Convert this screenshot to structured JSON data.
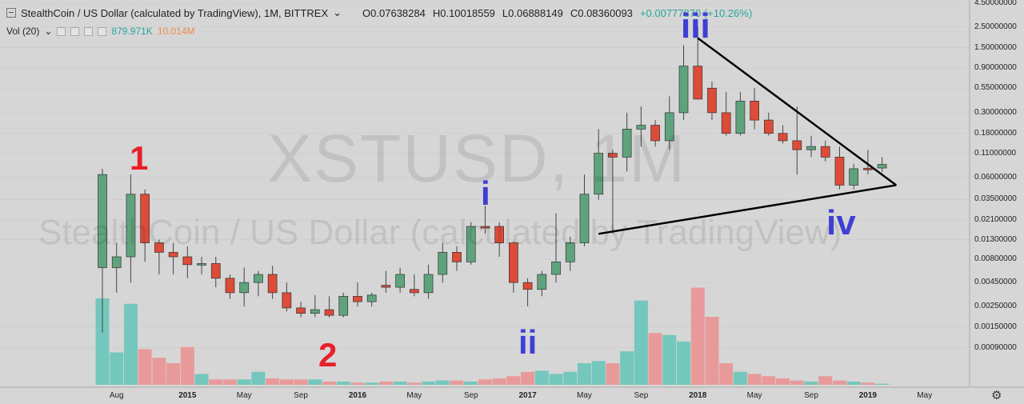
{
  "header": {
    "title": "StealthCoin / US Dollar (calculated by TradingView), 1M, BITTREX",
    "chevron": "⌄",
    "open": "O0.07638284",
    "high": "H0.10018559",
    "low": "L0.06888149",
    "close": "C0.08360093",
    "change": "+0.00777870 (+10.26%)"
  },
  "volume_indicator": {
    "label": "Vol (20)",
    "chevron": "⌄",
    "value_green": "879.971K",
    "value_orange": "10.014M"
  },
  "watermark": {
    "symbol": "XSTUSD, 1M",
    "description": "StealthCoin / US Dollar (calculated by TradingView)"
  },
  "annotations": [
    {
      "text": "1",
      "color": "#e8202a"
    },
    {
      "text": "2",
      "color": "#e8202a"
    },
    {
      "text": "i",
      "color": "#3f3fd4"
    },
    {
      "text": "ii",
      "color": "#3f3fd4"
    },
    {
      "text": "iii",
      "color": "#3f3fd4"
    },
    {
      "text": "iv",
      "color": "#3f3fd4"
    }
  ],
  "colors": {
    "up": "#5fa37d",
    "down": "#dd4b39",
    "vol_up": "#74c7bd",
    "vol_down": "#e89a9a",
    "trendline": "#000000"
  },
  "icons": {
    "settings": "gear-icon"
  },
  "chart_data": {
    "type": "candlestick",
    "scale": "log",
    "timeframe": "1M",
    "ylim": [
      0.0006,
      4.5
    ],
    "y_tick_labels": [
      "4.50000000",
      "2.50000000",
      "1.50000000",
      "0.90000000",
      "0.55000000",
      "0.30000000",
      "0.18000000",
      "0.11000000",
      "0.06000000",
      "0.03500000",
      "0.02100000",
      "0.01300000",
      "0.00800000",
      "0.00450000",
      "0.00250000",
      "0.00150000",
      "0.00090000"
    ],
    "x_tick_labels": [
      "Aug",
      "2015",
      "May",
      "Sep",
      "2016",
      "May",
      "Sep",
      "2017",
      "May",
      "Sep",
      "2018",
      "May",
      "Sep",
      "2019",
      "May"
    ],
    "series": [
      {
        "t": "2014-07",
        "o": 0.0065,
        "h": 0.075,
        "l": 0.0013,
        "c": 0.065
      },
      {
        "t": "2014-08",
        "o": 0.0065,
        "h": 0.012,
        "l": 0.0035,
        "c": 0.0085
      },
      {
        "t": "2014-09",
        "o": 0.0085,
        "h": 0.065,
        "l": 0.0045,
        "c": 0.04
      },
      {
        "t": "2014-10",
        "o": 0.04,
        "h": 0.045,
        "l": 0.0075,
        "c": 0.012
      },
      {
        "t": "2014-11",
        "o": 0.012,
        "h": 0.013,
        "l": 0.0055,
        "c": 0.0095
      },
      {
        "t": "2014-12",
        "o": 0.0095,
        "h": 0.012,
        "l": 0.0055,
        "c": 0.0085
      },
      {
        "t": "2015-01",
        "o": 0.0085,
        "h": 0.011,
        "l": 0.005,
        "c": 0.007
      },
      {
        "t": "2015-02",
        "o": 0.007,
        "h": 0.0085,
        "l": 0.0055,
        "c": 0.0072
      },
      {
        "t": "2015-03",
        "o": 0.0072,
        "h": 0.0085,
        "l": 0.004,
        "c": 0.005
      },
      {
        "t": "2015-04",
        "o": 0.005,
        "h": 0.0055,
        "l": 0.003,
        "c": 0.0035
      },
      {
        "t": "2015-05",
        "o": 0.0035,
        "h": 0.0065,
        "l": 0.0025,
        "c": 0.0045
      },
      {
        "t": "2015-06",
        "o": 0.0045,
        "h": 0.006,
        "l": 0.0032,
        "c": 0.0055
      },
      {
        "t": "2015-07",
        "o": 0.0055,
        "h": 0.0068,
        "l": 0.003,
        "c": 0.0035
      },
      {
        "t": "2015-08",
        "o": 0.0035,
        "h": 0.0045,
        "l": 0.0022,
        "c": 0.0024
      },
      {
        "t": "2015-09",
        "o": 0.0024,
        "h": 0.0028,
        "l": 0.0019,
        "c": 0.0021
      },
      {
        "t": "2015-10",
        "o": 0.0021,
        "h": 0.0033,
        "l": 0.0019,
        "c": 0.0023
      },
      {
        "t": "2015-11",
        "o": 0.0023,
        "h": 0.0032,
        "l": 0.0019,
        "c": 0.002
      },
      {
        "t": "2015-12",
        "o": 0.002,
        "h": 0.0035,
        "l": 0.0019,
        "c": 0.0032
      },
      {
        "t": "2016-01",
        "o": 0.0032,
        "h": 0.0045,
        "l": 0.0025,
        "c": 0.0028
      },
      {
        "t": "2016-02",
        "o": 0.0028,
        "h": 0.0035,
        "l": 0.0025,
        "c": 0.0033
      },
      {
        "t": "2016-03",
        "o": 0.0042,
        "h": 0.006,
        "l": 0.0035,
        "c": 0.004
      },
      {
        "t": "2016-04",
        "o": 0.004,
        "h": 0.0065,
        "l": 0.0035,
        "c": 0.0055
      },
      {
        "t": "2016-05",
        "o": 0.0038,
        "h": 0.0055,
        "l": 0.0032,
        "c": 0.0035
      },
      {
        "t": "2016-06",
        "o": 0.0035,
        "h": 0.007,
        "l": 0.003,
        "c": 0.0055
      },
      {
        "t": "2016-07",
        "o": 0.0055,
        "h": 0.012,
        "l": 0.0045,
        "c": 0.0095
      },
      {
        "t": "2016-08",
        "o": 0.0095,
        "h": 0.011,
        "l": 0.006,
        "c": 0.0075
      },
      {
        "t": "2016-09",
        "o": 0.0075,
        "h": 0.02,
        "l": 0.007,
        "c": 0.018
      },
      {
        "t": "2016-10",
        "o": 0.018,
        "h": 0.03,
        "l": 0.015,
        "c": 0.0175
      },
      {
        "t": "2016-11",
        "o": 0.018,
        "h": 0.02,
        "l": 0.0085,
        "c": 0.012
      },
      {
        "t": "2016-12",
        "o": 0.012,
        "h": 0.0125,
        "l": 0.0035,
        "c": 0.0045
      },
      {
        "t": "2017-01",
        "o": 0.0045,
        "h": 0.005,
        "l": 0.0025,
        "c": 0.0038
      },
      {
        "t": "2017-02",
        "o": 0.0038,
        "h": 0.006,
        "l": 0.0032,
        "c": 0.0055
      },
      {
        "t": "2017-03",
        "o": 0.0055,
        "h": 0.025,
        "l": 0.0045,
        "c": 0.0075
      },
      {
        "t": "2017-04",
        "o": 0.0075,
        "h": 0.014,
        "l": 0.006,
        "c": 0.012
      },
      {
        "t": "2017-05",
        "o": 0.012,
        "h": 0.065,
        "l": 0.011,
        "c": 0.04
      },
      {
        "t": "2017-06",
        "o": 0.04,
        "h": 0.2,
        "l": 0.035,
        "c": 0.11
      },
      {
        "t": "2017-07",
        "o": 0.11,
        "h": 0.12,
        "l": 0.015,
        "c": 0.1
      },
      {
        "t": "2017-08",
        "o": 0.1,
        "h": 0.3,
        "l": 0.07,
        "c": 0.2
      },
      {
        "t": "2017-09",
        "o": 0.2,
        "h": 0.35,
        "l": 0.13,
        "c": 0.22
      },
      {
        "t": "2017-10",
        "o": 0.22,
        "h": 0.25,
        "l": 0.13,
        "c": 0.15
      },
      {
        "t": "2017-11",
        "o": 0.15,
        "h": 0.45,
        "l": 0.12,
        "c": 0.3
      },
      {
        "t": "2017-12",
        "o": 0.3,
        "h": 1.6,
        "l": 0.25,
        "c": 0.95
      },
      {
        "t": "2018-01",
        "o": 0.95,
        "h": 2.5,
        "l": 0.5,
        "c": 0.42
      },
      {
        "t": "2018-02",
        "o": 0.55,
        "h": 0.65,
        "l": 0.25,
        "c": 0.3
      },
      {
        "t": "2018-03",
        "o": 0.3,
        "h": 0.5,
        "l": 0.17,
        "c": 0.18
      },
      {
        "t": "2018-04",
        "o": 0.18,
        "h": 0.5,
        "l": 0.17,
        "c": 0.4
      },
      {
        "t": "2018-05",
        "o": 0.4,
        "h": 0.55,
        "l": 0.2,
        "c": 0.25
      },
      {
        "t": "2018-06",
        "o": 0.25,
        "h": 0.3,
        "l": 0.17,
        "c": 0.18
      },
      {
        "t": "2018-07",
        "o": 0.18,
        "h": 0.22,
        "l": 0.14,
        "c": 0.15
      },
      {
        "t": "2018-08",
        "o": 0.15,
        "h": 0.35,
        "l": 0.065,
        "c": 0.12
      },
      {
        "t": "2018-09",
        "o": 0.12,
        "h": 0.17,
        "l": 0.1,
        "c": 0.13
      },
      {
        "t": "2018-10",
        "o": 0.13,
        "h": 0.15,
        "l": 0.09,
        "c": 0.1
      },
      {
        "t": "2018-11",
        "o": 0.1,
        "h": 0.13,
        "l": 0.045,
        "c": 0.05
      },
      {
        "t": "2018-12",
        "o": 0.05,
        "h": 0.085,
        "l": 0.045,
        "c": 0.075
      },
      {
        "t": "2019-01",
        "o": 0.076,
        "h": 0.12,
        "l": 0.065,
        "c": 0.075
      },
      {
        "t": "2019-02",
        "o": 0.07638284,
        "h": 0.10018559,
        "l": 0.06888149,
        "c": 0.08360093
      }
    ],
    "volume": [
      80,
      30,
      75,
      33,
      25,
      20,
      35,
      10,
      5,
      5,
      5,
      12,
      6,
      5,
      5,
      5,
      3,
      3,
      2,
      2,
      3,
      3,
      2,
      3,
      4,
      4,
      3,
      5,
      6,
      8,
      12,
      13,
      10,
      12,
      20,
      22,
      20,
      31,
      78,
      48,
      46,
      40,
      90,
      63,
      20,
      12,
      10,
      8,
      6,
      4,
      3,
      8,
      4,
      3,
      2,
      1
    ],
    "trendlines": [
      {
        "from": {
          "t": "2018-01",
          "v": 1.9
        },
        "to": {
          "t": "2019-03",
          "v": 0.05
        }
      },
      {
        "from": {
          "t": "2017-06",
          "v": 0.015
        },
        "to": {
          "t": "2019-03",
          "v": 0.05
        }
      }
    ]
  }
}
